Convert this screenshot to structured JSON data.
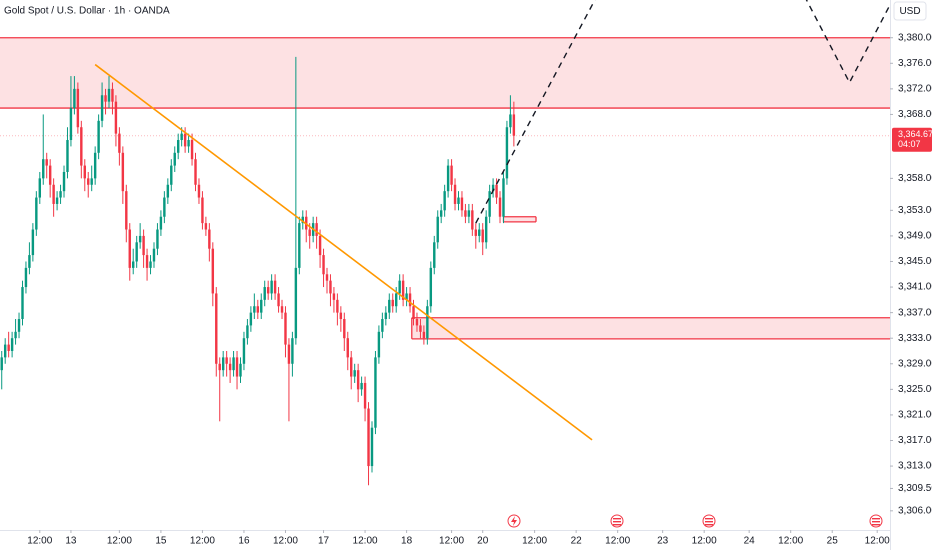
{
  "chart_data": {
    "type": "candlestick",
    "title": "Gold Spot / U.S. Dollar · 1h · OANDA",
    "currency": "USD",
    "up_color": "#089981",
    "down_color": "#f23645",
    "grid": false,
    "xlim": [
      -0.5,
      256.7
    ],
    "ylim": [
      3303,
      3385.9
    ],
    "yticks": [
      {
        "value": 3380,
        "label": "3,380.000"
      },
      {
        "value": 3376,
        "label": "3,376.000"
      },
      {
        "value": 3372,
        "label": "3,372.000"
      },
      {
        "value": 3368,
        "label": "3,368.000"
      },
      {
        "value": 3358,
        "label": "3,358.000"
      },
      {
        "value": 3353,
        "label": "3,353.000"
      },
      {
        "value": 3349,
        "label": "3,349.000"
      },
      {
        "value": 3345,
        "label": "3,345.000"
      },
      {
        "value": 3341,
        "label": "3,341.000"
      },
      {
        "value": 3337,
        "label": "3,337.000"
      },
      {
        "value": 3333,
        "label": "3,333.000"
      },
      {
        "value": 3329,
        "label": "3,329.000"
      },
      {
        "value": 3325,
        "label": "3,325.000"
      },
      {
        "value": 3321,
        "label": "3,321.000"
      },
      {
        "value": 3317,
        "label": "3,317.000"
      },
      {
        "value": 3313,
        "label": "3,313.000"
      },
      {
        "value": 3309.5,
        "label": "3,309.500"
      },
      {
        "value": 3306,
        "label": "3,306.000"
      }
    ],
    "xticks": [
      {
        "value": 11,
        "label": "12:00"
      },
      {
        "value": 20,
        "label": "13"
      },
      {
        "value": 34,
        "label": "12:00"
      },
      {
        "value": 46,
        "label": "15"
      },
      {
        "value": 58,
        "label": "12:00"
      },
      {
        "value": 70,
        "label": "16"
      },
      {
        "value": 82,
        "label": "12:00"
      },
      {
        "value": 93,
        "label": "17"
      },
      {
        "value": 105,
        "label": "12:00"
      },
      {
        "value": 117,
        "label": "18"
      },
      {
        "value": 130,
        "label": "12:00"
      },
      {
        "value": 139,
        "label": "20"
      },
      {
        "value": 154,
        "label": "12:00"
      },
      {
        "value": 166,
        "label": "22"
      },
      {
        "value": 178,
        "label": "12:00"
      },
      {
        "value": 191,
        "label": "23"
      },
      {
        "value": 203,
        "label": "12:00"
      },
      {
        "value": 216,
        "label": "24"
      },
      {
        "value": 228,
        "label": "12:00"
      },
      {
        "value": 240,
        "label": "25"
      },
      {
        "value": 253,
        "label": "12:00"
      }
    ],
    "last_price": {
      "value": 3364.67,
      "label": "3,364.670",
      "countdown": "04:07"
    },
    "zones": [
      {
        "low": 3369.0,
        "high": 3380.0
      },
      {
        "low": 3332.9,
        "high": 3336.2,
        "from": 118.5
      },
      {
        "low": 3351.2,
        "high": 3352.0,
        "from": 145,
        "to": 154.4
      }
    ],
    "zone_color": "#f23645",
    "trendline": {
      "x": [
        27,
        170.6
      ],
      "y": [
        3375.8,
        3317.1
      ],
      "color": "#ff9800"
    },
    "projections": [
      {
        "x": [
          137,
          172
        ],
        "y": [
          3351,
          3386.5
        ]
      },
      {
        "x": [
          232,
          245,
          258
        ],
        "y": [
          3386.5,
          3373,
          3386.5
        ]
      }
    ],
    "open": [
      3328,
      3330,
      3332,
      3331,
      3333,
      3334,
      3336,
      3341,
      3344,
      3346,
      3350,
      3355,
      3358,
      3361,
      3360,
      3357,
      3354,
      3355,
      3356,
      3359,
      3364,
      3369,
      3372,
      3366,
      3360,
      3358,
      3357,
      3358,
      3362,
      3367,
      3371,
      3370,
      3372,
      3370,
      3365,
      3362,
      3356,
      3350,
      3344,
      3345,
      3348,
      3349,
      3346,
      3344,
      3345,
      3347,
      3350,
      3352,
      3355,
      3357,
      3360,
      3362,
      3364,
      3365,
      3363,
      3364,
      3361,
      3357,
      3355,
      3351,
      3350,
      3347,
      3340,
      3329,
      3328,
      3330,
      3329,
      3328,
      3330,
      3327,
      3329,
      3333,
      3335,
      3337,
      3338,
      3337,
      3339,
      3341,
      3340,
      3342,
      3340,
      3338,
      3337,
      3332,
      3329,
      3333,
      3344,
      3351,
      3352,
      3350,
      3349,
      3351,
      3349,
      3346,
      3343,
      3342,
      3340,
      3339,
      3337,
      3336,
      3333,
      3330,
      3327,
      3328,
      3325,
      3326,
      3322,
      3313,
      3319,
      3330,
      3334,
      3336,
      3337,
      3339,
      3338,
      3340,
      3342,
      3339,
      3340,
      3338,
      3336,
      3335,
      3334,
      3333,
      3338,
      3344,
      3348,
      3352,
      3353,
      3356,
      3360,
      3357,
      3354,
      3355,
      3353,
      3352,
      3353,
      3350,
      3349,
      3350,
      3348,
      3352,
      3356,
      3357,
      3355,
      3352,
      3358,
      3366,
      3368
    ],
    "high": [
      3331,
      3333,
      3334,
      3334,
      3336,
      3337,
      3342,
      3345,
      3348,
      3351,
      3356,
      3359,
      3368,
      3362,
      3361,
      3358,
      3356,
      3357,
      3360,
      3366,
      3374,
      3374,
      3373,
      3367,
      3361,
      3359,
      3360,
      3363,
      3368,
      3373,
      3372,
      3374,
      3373,
      3371,
      3366,
      3363,
      3357,
      3351,
      3347,
      3349,
      3351,
      3350,
      3347,
      3346,
      3348,
      3351,
      3353,
      3356,
      3358,
      3361,
      3363,
      3365,
      3366,
      3366,
      3365,
      3365,
      3362,
      3358,
      3356,
      3352,
      3351,
      3348,
      3341,
      3330,
      3331,
      3331,
      3330,
      3331,
      3331,
      3330,
      3334,
      3336,
      3338,
      3340,
      3339,
      3340,
      3342,
      3342,
      3343,
      3343,
      3341,
      3339,
      3338,
      3333,
      3334,
      3377,
      3352,
      3353,
      3353,
      3351,
      3352,
      3352,
      3350,
      3347,
      3344,
      3343,
      3341,
      3340,
      3338,
      3337,
      3334,
      3331,
      3329,
      3329,
      3327,
      3327,
      3323,
      3320,
      3331,
      3335,
      3337,
      3338,
      3340,
      3340,
      3341,
      3343,
      3343,
      3341,
      3341,
      3339,
      3337,
      3336,
      3335,
      3339,
      3345,
      3349,
      3353,
      3354,
      3357,
      3361,
      3361,
      3358,
      3356,
      3356,
      3354,
      3354,
      3354,
      3351,
      3351,
      3351,
      3353,
      3357,
      3358,
      3358,
      3356,
      3359,
      3367,
      3371,
      3370
    ],
    "low": [
      3325,
      3329,
      3330,
      3330,
      3332,
      3333,
      3335,
      3340,
      3343,
      3345,
      3349,
      3354,
      3357,
      3358,
      3355,
      3352,
      3353,
      3354,
      3355,
      3358,
      3363,
      3368,
      3365,
      3358,
      3356,
      3355,
      3356,
      3357,
      3361,
      3366,
      3368,
      3369,
      3368,
      3363,
      3360,
      3354,
      3348,
      3342,
      3343,
      3344,
      3347,
      3344,
      3342,
      3343,
      3344,
      3346,
      3349,
      3351,
      3354,
      3356,
      3359,
      3361,
      3363,
      3362,
      3362,
      3360,
      3356,
      3354,
      3350,
      3349,
      3345,
      3338,
      3327,
      3320,
      3327,
      3327,
      3326,
      3327,
      3325,
      3326,
      3328,
      3332,
      3334,
      3336,
      3336,
      3336,
      3338,
      3339,
      3339,
      3339,
      3337,
      3336,
      3330,
      3320,
      3327,
      3332,
      3343,
      3350,
      3348,
      3347,
      3348,
      3347,
      3344,
      3341,
      3340,
      3338,
      3337,
      3335,
      3334,
      3331,
      3328,
      3325,
      3326,
      3323,
      3324,
      3320,
      3310,
      3312,
      3318,
      3329,
      3333,
      3335,
      3336,
      3337,
      3337,
      3339,
      3338,
      3338,
      3337,
      3335,
      3334,
      3333,
      3332,
      3332,
      3337,
      3343,
      3347,
      3351,
      3352,
      3355,
      3356,
      3353,
      3353,
      3352,
      3351,
      3351,
      3349,
      3347,
      3348,
      3346,
      3347,
      3351,
      3355,
      3354,
      3351,
      3351,
      3357,
      3365,
      3363
    ],
    "close": [
      3330,
      3332,
      3331,
      3333,
      3334,
      3336,
      3341,
      3344,
      3346,
      3350,
      3355,
      3358,
      3361,
      3360,
      3357,
      3354,
      3355,
      3356,
      3359,
      3364,
      3369,
      3372,
      3366,
      3360,
      3358,
      3357,
      3358,
      3362,
      3367,
      3371,
      3370,
      3372,
      3370,
      3365,
      3362,
      3356,
      3350,
      3344,
      3345,
      3348,
      3349,
      3346,
      3344,
      3345,
      3347,
      3350,
      3352,
      3355,
      3357,
      3360,
      3362,
      3364,
      3365,
      3363,
      3364,
      3361,
      3357,
      3355,
      3351,
      3350,
      3347,
      3340,
      3329,
      3328,
      3330,
      3329,
      3328,
      3330,
      3327,
      3329,
      3333,
      3335,
      3337,
      3338,
      3337,
      3339,
      3341,
      3340,
      3342,
      3340,
      3338,
      3337,
      3332,
      3329,
      3333,
      3344,
      3351,
      3352,
      3350,
      3349,
      3351,
      3349,
      3346,
      3343,
      3342,
      3340,
      3339,
      3337,
      3336,
      3333,
      3330,
      3327,
      3328,
      3325,
      3326,
      3322,
      3313,
      3319,
      3330,
      3334,
      3336,
      3337,
      3339,
      3338,
      3340,
      3342,
      3339,
      3340,
      3338,
      3336,
      3335,
      3334,
      3333,
      3338,
      3344,
      3348,
      3352,
      3353,
      3356,
      3360,
      3357,
      3354,
      3355,
      3353,
      3352,
      3353,
      3350,
      3349,
      3350,
      3348,
      3352,
      3356,
      3357,
      3355,
      3352,
      3358,
      3366,
      3368,
      3364.67
    ]
  }
}
